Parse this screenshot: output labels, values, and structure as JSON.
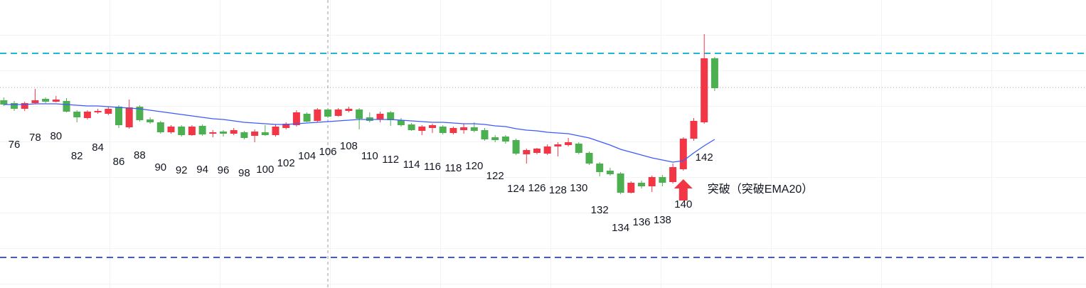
{
  "chart_data": {
    "type": "candlestick",
    "x": [
      75,
      76,
      77,
      78,
      79,
      80,
      81,
      82,
      83,
      84,
      85,
      86,
      87,
      88,
      89,
      90,
      91,
      92,
      93,
      94,
      95,
      96,
      97,
      98,
      99,
      100,
      101,
      102,
      103,
      104,
      105,
      106,
      107,
      108,
      109,
      110,
      111,
      112,
      113,
      114,
      115,
      116,
      117,
      118,
      119,
      120,
      121,
      122,
      123,
      124,
      125,
      126,
      127,
      128,
      129,
      130,
      131,
      132,
      133,
      134,
      135,
      136,
      137,
      138,
      139,
      140,
      141,
      142,
      143
    ],
    "open": [
      264,
      260,
      252,
      260,
      266,
      262,
      263,
      248,
      239,
      247,
      245,
      255,
      226,
      255,
      237,
      233,
      219,
      227,
      215,
      228,
      217,
      220,
      217,
      219,
      214,
      219,
      215,
      225,
      229,
      245,
      235,
      251,
      242,
      249,
      251,
      240,
      237,
      247,
      236,
      230,
      221,
      225,
      227,
      218,
      222,
      226,
      222,
      212,
      213,
      208,
      188,
      190,
      189,
      199,
      201,
      203,
      190,
      175,
      165,
      161,
      134,
      148,
      143,
      156,
      149,
      167,
      210,
      233,
      323
    ],
    "high": [
      268,
      263,
      262,
      280,
      268,
      270,
      267,
      250,
      250,
      252,
      255,
      257,
      265,
      257,
      240,
      235,
      229,
      229,
      229,
      230,
      222,
      222,
      225,
      221,
      223,
      229,
      230,
      233,
      250,
      247,
      253,
      253,
      253,
      255,
      253,
      247,
      248,
      249,
      239,
      232,
      229,
      231,
      229,
      227,
      231,
      233,
      225,
      215,
      215,
      210,
      196,
      197,
      202,
      205,
      211,
      205,
      192,
      177,
      169,
      163,
      150,
      151,
      158,
      159,
      175,
      212,
      239,
      357,
      325
    ],
    "low": [
      256,
      249,
      249,
      259,
      260,
      261,
      247,
      233,
      237,
      245,
      243,
      225,
      224,
      234,
      231,
      217,
      217,
      213,
      214,
      214,
      212,
      213,
      215,
      209,
      205,
      214,
      213,
      223,
      227,
      233,
      233,
      239,
      241,
      247,
      223,
      233,
      233,
      228,
      227,
      221,
      215,
      218,
      216,
      216,
      217,
      219,
      207,
      205,
      203,
      187,
      175,
      188,
      187,
      185,
      199,
      188,
      173,
      157,
      158,
      132,
      133,
      140,
      135,
      143,
      147,
      165,
      207,
      231,
      277
    ],
    "close": [
      258,
      252,
      260,
      264,
      262,
      265,
      248,
      240,
      248,
      249,
      252,
      229,
      254,
      236,
      233,
      219,
      227,
      215,
      227,
      216,
      219,
      217,
      222,
      211,
      220,
      215,
      227,
      231,
      247,
      234,
      251,
      241,
      251,
      252,
      238,
      235,
      245,
      236,
      229,
      222,
      227,
      229,
      218,
      225,
      226,
      221,
      209,
      208,
      206,
      189,
      194,
      196,
      199,
      202,
      205,
      190,
      175,
      163,
      160,
      134,
      148,
      143,
      156,
      148,
      170,
      210,
      235,
      323,
      281
    ],
    "up_color": "#f23645",
    "down_color": "#4caf50",
    "ylim": [
      0,
      405
    ],
    "ema": {
      "name": "EMA20",
      "color": "#3d5afe",
      "values": [
        258,
        258,
        258,
        259,
        259,
        259,
        258,
        257,
        256,
        256,
        255,
        254,
        253,
        252,
        250,
        248,
        246,
        244,
        242,
        240,
        238,
        237,
        235,
        233,
        232,
        231,
        230,
        230,
        231,
        232,
        233,
        234,
        235,
        236,
        237,
        237,
        237,
        237,
        236,
        235,
        234,
        233,
        233,
        232,
        231,
        231,
        230,
        228,
        227,
        224,
        222,
        221,
        219,
        218,
        217,
        214,
        211,
        206,
        201,
        195,
        191,
        187,
        183,
        180,
        177,
        179,
        190,
        200,
        209
      ]
    },
    "hlines": [
      {
        "value": 330,
        "color": "#1fb8d3",
        "style": "dashed"
      },
      {
        "value": 282,
        "color": "#9aa0ad",
        "style": "dotted"
      },
      {
        "value": 43,
        "color": "#3d5adf",
        "style": "dashed"
      }
    ],
    "crosshair_x": 106,
    "annotation": {
      "text": "突破（突破EMA20）",
      "x": 140,
      "color": "#4f6cf0",
      "arrow_color": "#f23645"
    }
  }
}
